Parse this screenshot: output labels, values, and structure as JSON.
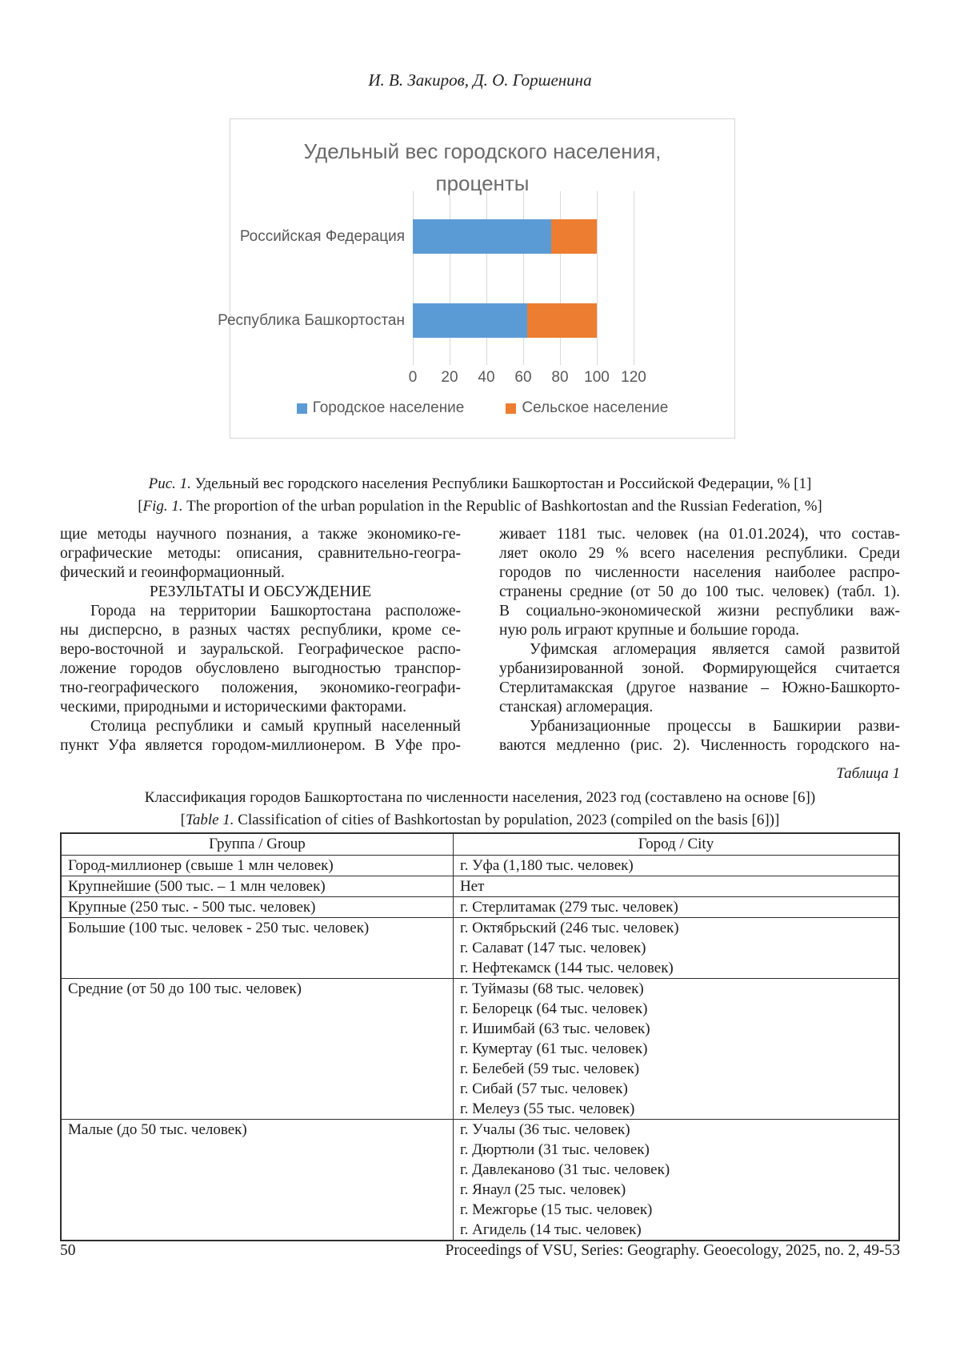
{
  "page": {
    "authors": "И. В. Закиров, Д. О. Горшенина",
    "footer": {
      "page_number": "50",
      "journal": "Proceedings of VSU, Series: Geography. Geoecology, 2025, no. 2, 49-53"
    }
  },
  "chart_data": {
    "type": "bar",
    "orientation": "horizontal-stacked",
    "title": "Удельный вес городского населения, проценты",
    "categories": [
      "Российская Федерация",
      "Республика Башкортостан"
    ],
    "series": [
      {
        "name": "Городское население",
        "color": "#5B9BD5",
        "values": [
          75,
          62
        ]
      },
      {
        "name": "Сельское население",
        "color": "#ED7D31",
        "values": [
          25,
          38
        ]
      }
    ],
    "xlim": [
      0,
      120
    ],
    "xticks": [
      0,
      20,
      40,
      60,
      80,
      100,
      120
    ],
    "grid": true,
    "legend_position": "bottom",
    "gridline_color": "#d9d9d9",
    "title_color": "#6a6a6a",
    "axis_text_color": "#595959"
  },
  "figure_caption": {
    "ru_label": "Рис. 1.",
    "ru_text": " Удельный вес городского населения Республики Башкортостан и Российской Федерации, % [1]",
    "en_open": "[",
    "en_label": "Fig. 1.",
    "en_text": " The proportion of the urban population in the Republic of Bashkortostan and the Russian Federation, %]"
  },
  "article": {
    "left_column": [
      {
        "t": "j",
        "text": "щие методы научного познания, а также экономико-ге-"
      },
      {
        "t": "j",
        "text": "ографические методы: описания, сравнительно-геогра-"
      },
      {
        "t": "l",
        "text": "фический и геоинформационный."
      },
      {
        "t": "h",
        "text": "РЕЗУЛЬТАТЫ И ОБСУЖДЕНИЕ"
      },
      {
        "t": "j",
        "i": true,
        "text": "Города на территории Башкортостана расположе-"
      },
      {
        "t": "j",
        "text": "ны дисперсно, в разных частях республики, кроме се-"
      },
      {
        "t": "j",
        "text": "веро-восточной и зауральской. Географическое распо-"
      },
      {
        "t": "j",
        "text": "ложение городов обусловлено выгодностью транспор-"
      },
      {
        "t": "j",
        "text": "тно-географического положения, экономико-географи-"
      },
      {
        "t": "l",
        "text": "ческими, природными и историческими факторами."
      },
      {
        "t": "j",
        "i": true,
        "text": "Столица республики и самый крупный населенный"
      },
      {
        "t": "j",
        "text": "пункт Уфа является городом-миллионером. В Уфе про-"
      }
    ],
    "right_column": [
      {
        "t": "j",
        "text": "живает 1181 тыс. человек (на 01.01.2024), что состав-"
      },
      {
        "t": "j",
        "text": "ляет около 29 % всего населения республики. Среди"
      },
      {
        "t": "j",
        "text": "городов по численности населения наиболее распро-"
      },
      {
        "t": "j",
        "text": "странены средние (от 50 до 100 тыс. человек) (табл. 1)."
      },
      {
        "t": "j",
        "text": "В социально-экономической жизни республики важ-"
      },
      {
        "t": "l",
        "text": "ную роль играют крупные и большие города."
      },
      {
        "t": "j",
        "i": true,
        "text": "Уфимская агломерация является самой развитой"
      },
      {
        "t": "j",
        "text": "урбанизированной зоной. Формирующейся считается"
      },
      {
        "t": "j",
        "text": "Стерлитамакская (другое название – Южно-Башкорто-"
      },
      {
        "t": "l",
        "text": "станская) агломерация."
      },
      {
        "t": "j",
        "i": true,
        "text": "Урбанизационные процессы в Башкирии разви-"
      },
      {
        "t": "j",
        "text": "ваются медленно (рис. 2). Численность городского на-"
      }
    ]
  },
  "table_block": {
    "label": "Таблица 1",
    "caption_ru": "Классификация городов Башкортостана по численности населения, 2023 год (составлено на основе [6])",
    "caption_en_open": "[",
    "caption_en_label": "Table 1.",
    "caption_en_text": " Classification of cities of Bashkortostan by population, 2023 (compiled on the basis [6])]",
    "headers": [
      "Группа / Group",
      "Город / City"
    ],
    "rows": [
      {
        "group": "Город-миллионер (свыше 1 млн человек)",
        "cities": [
          "г. Уфа (1,180 тыс. человек)"
        ]
      },
      {
        "group": "Крупнейшие (500 тыс. – 1 млн человек)",
        "cities": [
          "Нет"
        ]
      },
      {
        "group": "Крупные (250 тыс. - 500 тыс. человек)",
        "cities": [
          "г. Стерлитамак (279 тыс. человек)"
        ]
      },
      {
        "group": "Большие (100 тыс. человек - 250 тыс. человек)",
        "cities": [
          "г. Октябрьский (246 тыс. человек)",
          "г. Салават (147 тыс. человек)",
          "г. Нефтекамск (144 тыс. человек)"
        ]
      },
      {
        "group": "Средние (от 50 до 100 тыс. человек)",
        "cities": [
          "г. Туймазы (68 тыс. человек)",
          "г. Белорецк (64 тыс. человек)",
          "г. Ишимбай (63 тыс. человек)",
          "г. Кумертау (61 тыс. человек)",
          "г. Белебей (59 тыс. человек)",
          "г. Сибай (57 тыс. человек)",
          "г. Мелеуз (55 тыс. человек)"
        ]
      },
      {
        "group": "Малые (до 50 тыс. человек)",
        "cities": [
          "г. Учалы (36 тыс. человек)",
          "г. Дюртюли (31 тыс. человек)",
          "г. Давлеканово (31 тыс. человек)",
          "г. Янаул (25 тыс. человек)",
          "г. Межгорье (15 тыс. человек)",
          "г. Агидель (14 тыс. человек)"
        ]
      }
    ]
  }
}
